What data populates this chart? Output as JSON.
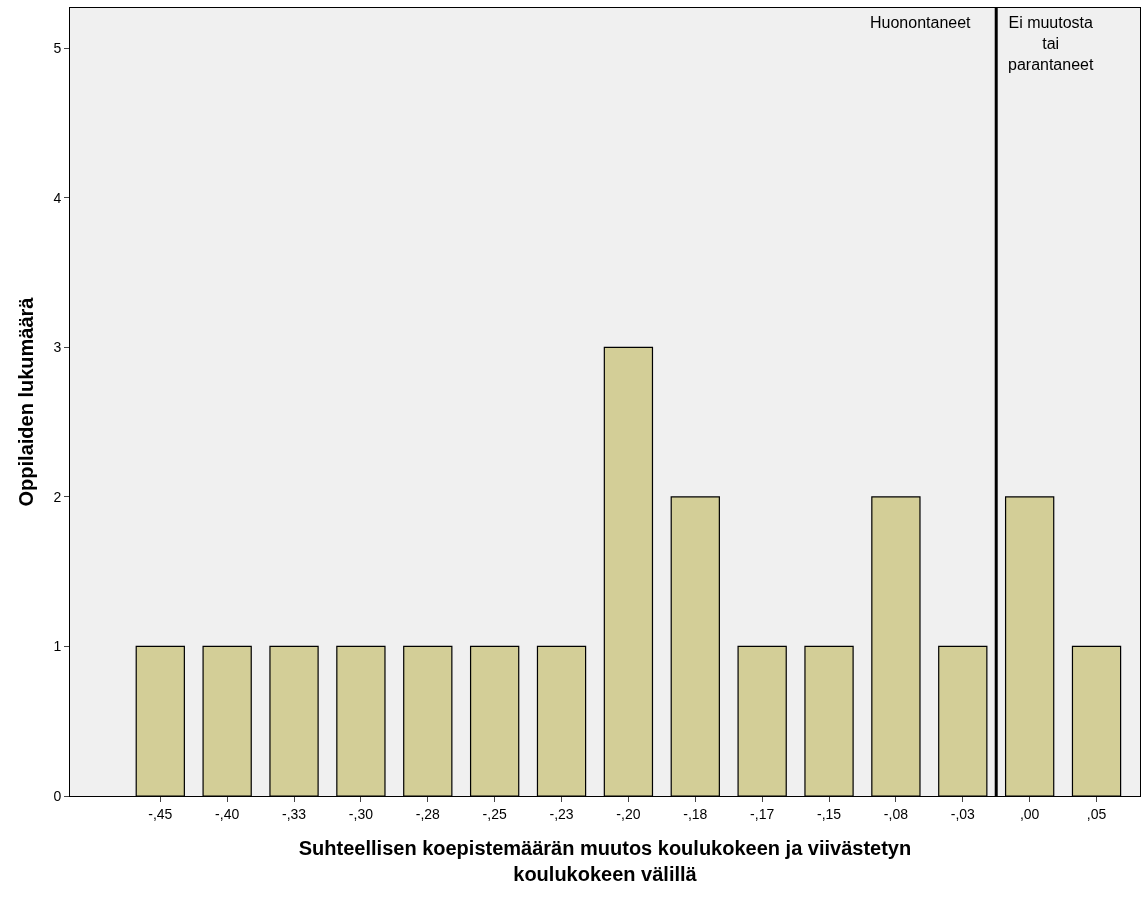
{
  "chart_data": {
    "type": "bar",
    "categories": [
      "-,45",
      "-,40",
      "-,33",
      "-,30",
      "-,28",
      "-,25",
      "-,23",
      "-,20",
      "-,18",
      "-,17",
      "-,15",
      "-,08",
      "-,03",
      ",00",
      ",05"
    ],
    "values": [
      1,
      1,
      1,
      1,
      1,
      1,
      1,
      3,
      2,
      1,
      1,
      2,
      1,
      2,
      1
    ],
    "color": "#d3ce97",
    "xlabel": "Suhteellisen koepistemäärän muutos koulukokeen ja viivästetyn\nkoulukokeen välillä",
    "ylabel": "Oppilaiden lukumäärä",
    "ylim": [
      0,
      5.27
    ],
    "yticks": [
      0,
      1,
      2,
      3,
      4,
      5
    ],
    "grid": false,
    "annotations": [
      "Huonontaneet",
      "Ei muutosta\ntai\nparantaneet"
    ]
  }
}
